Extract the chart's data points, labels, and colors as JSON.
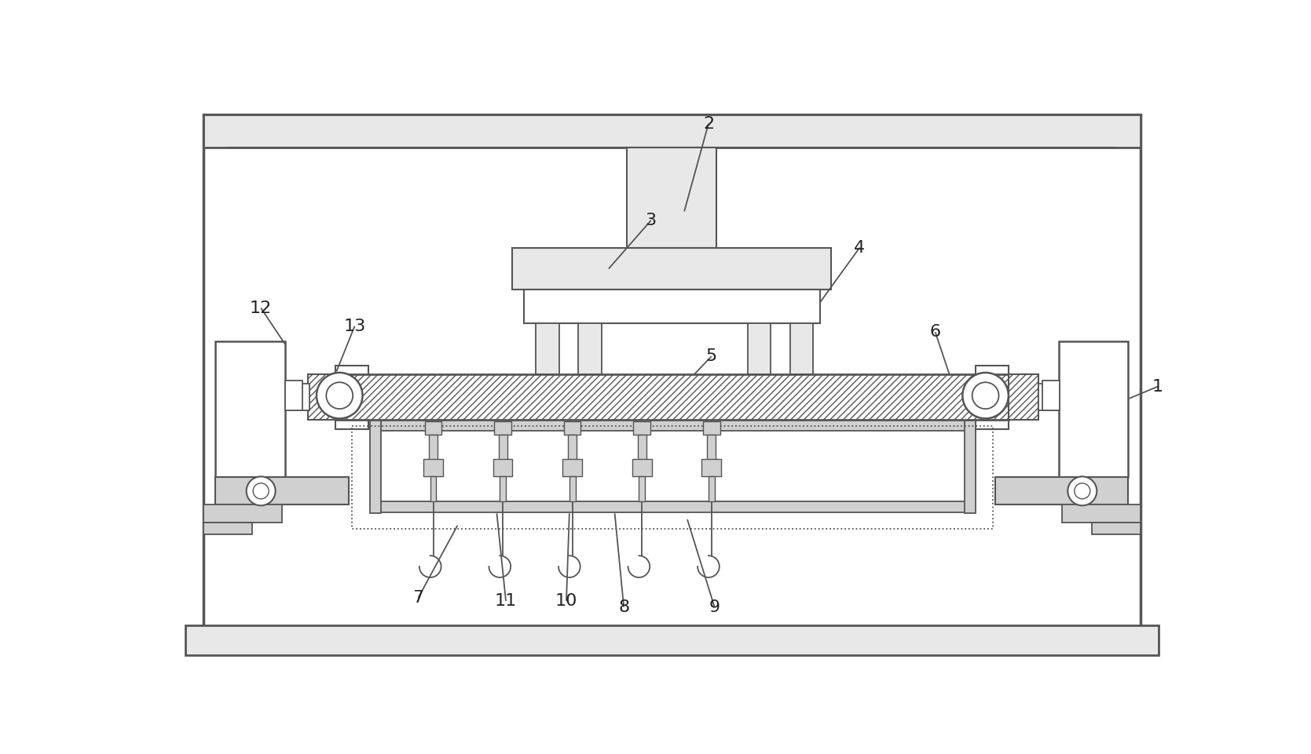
{
  "bg_color": "#ffffff",
  "line_color": "#555555",
  "fill_light": "#e8e8e8",
  "fill_mid": "#d0d0d0",
  "label_color": "#222222",
  "label_fs": 16
}
